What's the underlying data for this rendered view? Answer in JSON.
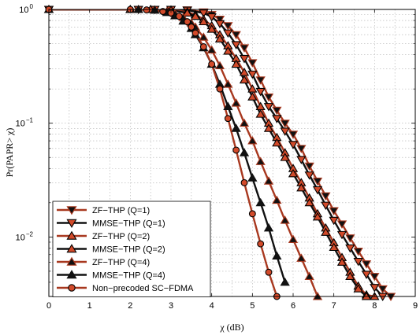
{
  "chart_data": {
    "type": "line",
    "title": "",
    "xlabel": "χ  (dB)",
    "ylabel": "Pr(PAPR> χ)",
    "xlim": [
      0,
      9
    ],
    "ylim": [
      0.003,
      1
    ],
    "yscale": "log",
    "grid": true,
    "legend_position": "bottom-left",
    "x_ticks": [
      "0",
      "1",
      "2",
      "3",
      "4",
      "5",
      "6",
      "7",
      "8",
      "9"
    ],
    "y_ticks": [
      {
        "value": 1,
        "label": "10",
        "exp": "0"
      },
      {
        "value": 0.1,
        "label": "10",
        "exp": "−1"
      },
      {
        "value": 0.01,
        "label": "10",
        "exp": "−2"
      }
    ],
    "colors": {
      "red": "#a8381f",
      "black": "#111111",
      "marker_red_fill": "#d24a2a"
    },
    "series": [
      {
        "name": "ZF−THP (Q=1)",
        "color": "red",
        "marker": "triangle-down",
        "marker_fill": "black",
        "x": [
          0,
          2.2,
          2.6,
          3.0,
          3.4,
          3.8,
          4.0,
          4.2,
          4.4,
          4.6,
          4.8,
          5.0,
          5.2,
          5.4,
          5.6,
          5.8,
          6.0,
          6.2,
          6.4,
          6.6,
          6.8,
          7.0,
          7.2,
          7.4,
          7.6,
          7.8,
          8.0,
          8.2,
          8.4
        ],
        "y": [
          1,
          1,
          1,
          1,
          0.99,
          0.95,
          0.9,
          0.82,
          0.72,
          0.6,
          0.46,
          0.34,
          0.24,
          0.17,
          0.13,
          0.1,
          0.08,
          0.06,
          0.042,
          0.031,
          0.023,
          0.017,
          0.013,
          0.0098,
          0.0075,
          0.0058,
          0.0045,
          0.0035,
          0.003
        ]
      },
      {
        "name": "MMSE−THP (Q=1)",
        "color": "black",
        "marker": "triangle-down",
        "marker_fill": "red",
        "x": [
          0,
          2.2,
          2.6,
          3.0,
          3.4,
          3.8,
          4.0,
          4.2,
          4.4,
          4.6,
          4.8,
          5.0,
          5.2,
          5.4,
          5.6,
          5.8,
          6.0,
          6.2,
          6.4,
          6.6,
          6.8,
          7.0,
          7.2,
          7.4,
          7.6,
          7.8,
          8.0,
          8.2
        ],
        "y": [
          1,
          1,
          1,
          1,
          0.985,
          0.93,
          0.86,
          0.75,
          0.62,
          0.49,
          0.37,
          0.27,
          0.19,
          0.14,
          0.11,
          0.085,
          0.065,
          0.048,
          0.035,
          0.026,
          0.019,
          0.014,
          0.0105,
          0.008,
          0.0061,
          0.0047,
          0.0036,
          0.003
        ]
      },
      {
        "name": "ZF−THP (Q=2)",
        "color": "red",
        "marker": "triangle-up",
        "marker_fill": "red",
        "x": [
          0,
          2.0,
          2.5,
          3.0,
          3.4,
          3.6,
          3.8,
          4.0,
          4.2,
          4.4,
          4.6,
          4.8,
          5.0,
          5.2,
          5.4,
          5.6,
          5.8,
          6.0,
          6.2,
          6.4,
          6.6,
          6.8,
          7.0,
          7.2,
          7.4,
          7.6,
          7.8,
          8.0
        ],
        "y": [
          1,
          1,
          1,
          0.99,
          0.95,
          0.9,
          0.82,
          0.72,
          0.6,
          0.48,
          0.37,
          0.28,
          0.2,
          0.14,
          0.1,
          0.075,
          0.055,
          0.04,
          0.03,
          0.022,
          0.016,
          0.012,
          0.0089,
          0.0066,
          0.0049,
          0.0037,
          0.0031,
          0.003
        ]
      },
      {
        "name": "MMSE−THP (Q=2)",
        "color": "black",
        "marker": "triangle-up",
        "marker_fill": "red",
        "x": [
          0,
          2.0,
          2.5,
          3.0,
          3.4,
          3.6,
          3.8,
          4.0,
          4.2,
          4.4,
          4.6,
          4.8,
          5.0,
          5.2,
          5.4,
          5.6,
          5.8,
          6.0,
          6.2,
          6.4,
          6.6,
          6.8,
          7.0,
          7.2,
          7.4,
          7.6,
          7.8
        ],
        "y": [
          1,
          1,
          1,
          0.985,
          0.93,
          0.87,
          0.78,
          0.67,
          0.55,
          0.43,
          0.33,
          0.24,
          0.17,
          0.12,
          0.09,
          0.067,
          0.05,
          0.036,
          0.027,
          0.02,
          0.015,
          0.011,
          0.0081,
          0.006,
          0.0045,
          0.0035,
          0.003
        ]
      },
      {
        "name": "ZF−THP (Q=4)",
        "color": "red",
        "marker": "triangle-up",
        "marker_fill": "black",
        "x": [
          0,
          2.2,
          2.6,
          2.9,
          3.1,
          3.3,
          3.5,
          3.6,
          3.8,
          4.0,
          4.2,
          4.4,
          4.6,
          4.8,
          5.0,
          5.2,
          5.4,
          5.6,
          5.8,
          6.0,
          6.2,
          6.4,
          6.6
        ],
        "y": [
          1,
          1,
          0.99,
          0.96,
          0.92,
          0.85,
          0.76,
          0.7,
          0.57,
          0.44,
          0.32,
          0.22,
          0.15,
          0.1,
          0.07,
          0.046,
          0.031,
          0.021,
          0.014,
          0.0095,
          0.0065,
          0.0045,
          0.003
        ]
      },
      {
        "name": "MMSE−THP (Q=4)",
        "color": "black",
        "marker": "triangle-up",
        "marker_fill": "black",
        "x": [
          0,
          2.2,
          2.6,
          2.9,
          3.1,
          3.3,
          3.5,
          3.6,
          3.8,
          4.0,
          4.2,
          4.4,
          4.6,
          4.8,
          5.0,
          5.2,
          5.4,
          5.6,
          5.8
        ],
        "y": [
          1,
          1,
          0.985,
          0.94,
          0.88,
          0.79,
          0.68,
          0.6,
          0.46,
          0.33,
          0.22,
          0.14,
          0.09,
          0.055,
          0.033,
          0.02,
          0.012,
          0.0068,
          0.004
        ]
      },
      {
        "name": "Non−precoded SC−FDMA",
        "color": "red",
        "marker": "circle",
        "marker_fill": "red",
        "x": [
          0,
          2.0,
          2.4,
          2.8,
          3.0,
          3.2,
          3.4,
          3.5,
          3.6,
          3.8,
          4.0,
          4.2,
          4.4,
          4.6,
          4.8,
          5.0,
          5.2,
          5.4,
          5.6,
          5.8
        ],
        "y": [
          1,
          1,
          0.99,
          0.96,
          0.93,
          0.87,
          0.78,
          0.7,
          0.62,
          0.47,
          0.33,
          0.2,
          0.11,
          0.058,
          0.03,
          0.016,
          0.0087,
          0.0049,
          0.003,
          0.0025
        ]
      }
    ]
  }
}
